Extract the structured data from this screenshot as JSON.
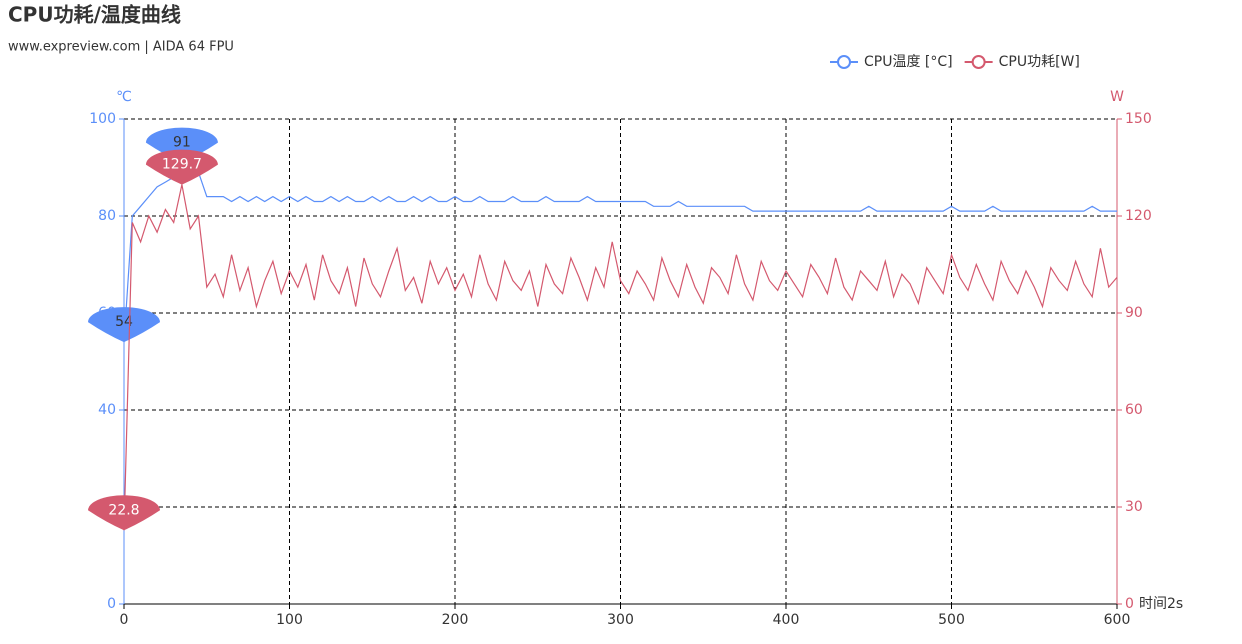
{
  "chart_data": {
    "type": "line",
    "title": "CPU功耗/温度曲线",
    "subtitle": "www.expreview.com | AIDA 64 FPU",
    "x_label": "时间2s",
    "y_label": "℃",
    "y2_label": "W",
    "x": [
      0,
      5,
      10,
      15,
      20,
      25,
      30,
      35,
      40,
      45,
      50,
      55,
      60,
      65,
      70,
      75,
      80,
      85,
      90,
      95,
      100,
      105,
      110,
      115,
      120,
      125,
      130,
      135,
      140,
      145,
      150,
      155,
      160,
      165,
      170,
      175,
      180,
      185,
      190,
      195,
      200,
      205,
      210,
      215,
      220,
      225,
      230,
      235,
      240,
      245,
      250,
      255,
      260,
      265,
      270,
      275,
      280,
      285,
      290,
      295,
      300,
      305,
      310,
      315,
      320,
      325,
      330,
      335,
      340,
      345,
      350,
      355,
      360,
      365,
      370,
      375,
      380,
      385,
      390,
      395,
      400,
      405,
      410,
      415,
      420,
      425,
      430,
      435,
      440,
      445,
      450,
      455,
      460,
      465,
      470,
      475,
      480,
      485,
      490,
      495,
      500,
      505,
      510,
      515,
      520,
      525,
      530,
      535,
      540,
      545,
      550,
      555,
      560,
      565,
      570,
      575,
      580,
      585,
      590,
      595,
      600
    ],
    "series": [
      {
        "name": "CPU温度 [°C]",
        "color": "#5b8ff9",
        "values": [
          54,
          80,
          82,
          84,
          86,
          87,
          88,
          91,
          90,
          89,
          84,
          84,
          84,
          83,
          84,
          83,
          84,
          83,
          84,
          83,
          84,
          83,
          84,
          83,
          83,
          84,
          83,
          84,
          83,
          83,
          84,
          83,
          84,
          83,
          83,
          84,
          83,
          84,
          83,
          83,
          84,
          83,
          83,
          84,
          83,
          83,
          83,
          84,
          83,
          83,
          83,
          84,
          83,
          83,
          83,
          83,
          84,
          83,
          83,
          83,
          83,
          83,
          83,
          83,
          82,
          82,
          82,
          83,
          82,
          82,
          82,
          82,
          82,
          82,
          82,
          82,
          81,
          81,
          81,
          81,
          81,
          81,
          81,
          81,
          81,
          81,
          81,
          81,
          81,
          81,
          82,
          81,
          81,
          81,
          81,
          81,
          81,
          81,
          81,
          81,
          82,
          81,
          81,
          81,
          81,
          82,
          81,
          81,
          81,
          81,
          81,
          81,
          81,
          81,
          81,
          81,
          81,
          82,
          81,
          81,
          81
        ],
        "markpoints": [
          {
            "x": 35,
            "value": 91
          },
          {
            "x": 0,
            "value": 54
          }
        ]
      },
      {
        "name": "CPU功耗[W]",
        "color": "#d4596e",
        "axis": "y2",
        "values": [
          22.8,
          118,
          112,
          120,
          115,
          122,
          118,
          129.7,
          116,
          120,
          98,
          102,
          95,
          108,
          97,
          104,
          92,
          100,
          106,
          96,
          103,
          98,
          105,
          94,
          108,
          100,
          96,
          104,
          92,
          107,
          99,
          95,
          103,
          110,
          97,
          101,
          93,
          106,
          99,
          104,
          97,
          102,
          95,
          108,
          99,
          94,
          106,
          100,
          97,
          103,
          92,
          105,
          99,
          96,
          107,
          101,
          94,
          104,
          98,
          112,
          100,
          96,
          103,
          99,
          94,
          107,
          100,
          95,
          105,
          98,
          93,
          104,
          101,
          96,
          108,
          99,
          94,
          106,
          100,
          97,
          103,
          99,
          95,
          105,
          101,
          96,
          107,
          98,
          94,
          103,
          100,
          97,
          106,
          95,
          102,
          99,
          93,
          104,
          100,
          96,
          108,
          101,
          97,
          105,
          99,
          94,
          106,
          100,
          96,
          103,
          98,
          92,
          104,
          100,
          97,
          106,
          99,
          95,
          110,
          98,
          101
        ],
        "markpoints": [
          {
            "x": 35,
            "value": 129.7
          },
          {
            "x": 0,
            "value": 22.8
          }
        ]
      }
    ],
    "xlim": [
      0,
      600
    ],
    "xticks": [
      0,
      100,
      200,
      300,
      400,
      500,
      600
    ],
    "ylim": [
      0,
      100
    ],
    "yticks": [
      0,
      20,
      40,
      60,
      80,
      100
    ],
    "y2lim": [
      0,
      150
    ],
    "y2ticks": [
      0,
      30,
      60,
      90,
      120,
      150
    ],
    "grid": true,
    "legend": "top-right"
  }
}
